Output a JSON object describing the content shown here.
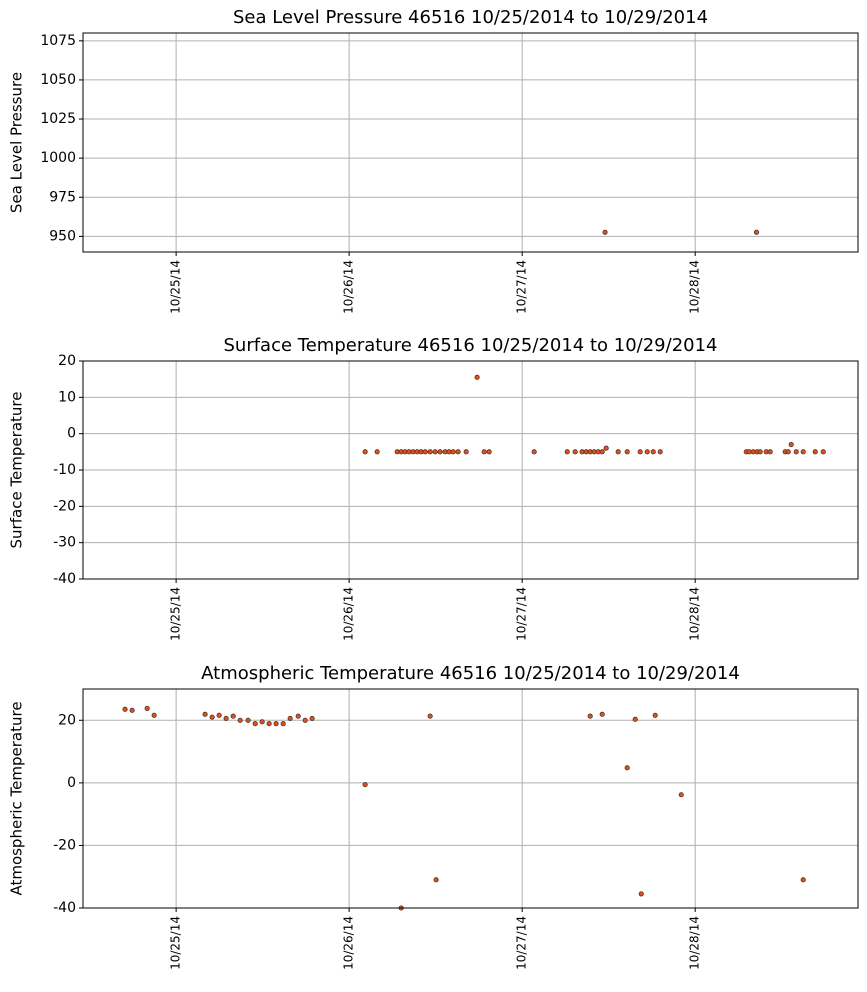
{
  "chart_data": [
    {
      "type": "scatter",
      "title": "Sea Level Pressure 46516  10/25/2014 to 10/29/2014",
      "y_label": "Sea Level Pressure",
      "x": [
        "2014-10-27T11:30",
        "2014-10-28T08:30"
      ],
      "values": [
        952.6,
        952.6
      ],
      "color": "#e0501c",
      "grid": true,
      "xlim": [
        "2014-10-24T11:05",
        "2014-10-28T22:35"
      ],
      "xticks": [
        {
          "value": "2014-10-25T00:00",
          "label": "10/25/14"
        },
        {
          "value": "2014-10-26T00:00",
          "label": "10/26/14"
        },
        {
          "value": "2014-10-27T00:00",
          "label": "10/27/14"
        },
        {
          "value": "2014-10-28T00:00",
          "label": "10/28/14"
        }
      ],
      "ylim": [
        940,
        1080
      ],
      "yticks": [
        950,
        975,
        1000,
        1025,
        1050,
        1075
      ]
    },
    {
      "type": "scatter",
      "title": "Surface Temperature 46516  10/25/2014 to 10/29/2014",
      "y_label": "Surface Temperature",
      "x": [
        "2014-10-26T02:13",
        "2014-10-26T03:53",
        "2014-10-26T06:40",
        "2014-10-26T07:13",
        "2014-10-26T07:46",
        "2014-10-26T08:19",
        "2014-10-26T08:53",
        "2014-10-26T09:26",
        "2014-10-26T09:59",
        "2014-10-26T10:33",
        "2014-10-26T11:14",
        "2014-10-26T11:56",
        "2014-10-26T12:37",
        "2014-10-26T13:19",
        "2014-10-26T13:52",
        "2014-10-26T14:26",
        "2014-10-26T15:07",
        "2014-10-26T16:14",
        "2014-10-26T17:45",
        "2014-10-26T18:44",
        "2014-10-26T19:25",
        "2014-10-27T01:40",
        "2014-10-27T06:15",
        "2014-10-27T07:21",
        "2014-10-27T08:19",
        "2014-10-27T08:53",
        "2014-10-27T09:26",
        "2014-10-27T09:59",
        "2014-10-27T10:33",
        "2014-10-27T11:06",
        "2014-10-27T11:39",
        "2014-10-27T13:19",
        "2014-10-27T14:34",
        "2014-10-27T16:22",
        "2014-10-27T17:21",
        "2014-10-27T18:11",
        "2014-10-27T19:09",
        "2014-10-28T07:05",
        "2014-10-28T07:29",
        "2014-10-28T08:03",
        "2014-10-28T08:36",
        "2014-10-28T09:01",
        "2014-10-28T09:51",
        "2014-10-28T10:24",
        "2014-10-28T12:29",
        "2014-10-28T12:54",
        "2014-10-28T13:19",
        "2014-10-28T14:01",
        "2014-10-28T14:59",
        "2014-10-28T16:39",
        "2014-10-28T17:46"
      ],
      "values": [
        -5,
        -5,
        -5,
        -5,
        -5,
        -5,
        -5,
        -5,
        -5,
        -5,
        -5,
        -5,
        -5,
        -5,
        -5,
        -5,
        -5,
        -5,
        15.5,
        -5,
        -5,
        -5,
        -5,
        -5,
        -5,
        -5,
        -5,
        -5,
        -5,
        -5,
        -4,
        -5,
        -5,
        -5,
        -5,
        -5,
        -5,
        -5,
        -5,
        -5,
        -5,
        -5,
        -5,
        -5,
        -5,
        -5,
        -3,
        -5,
        -5,
        -5,
        -5
      ],
      "color": "#e0501c",
      "grid": true,
      "xlim": [
        "2014-10-24T11:05",
        "2014-10-28T22:35"
      ],
      "xticks": [
        {
          "value": "2014-10-25T00:00",
          "label": "10/25/14"
        },
        {
          "value": "2014-10-26T00:00",
          "label": "10/26/14"
        },
        {
          "value": "2014-10-27T00:00",
          "label": "10/27/14"
        },
        {
          "value": "2014-10-28T00:00",
          "label": "10/28/14"
        }
      ],
      "ylim": [
        -40,
        20
      ],
      "yticks": [
        -40,
        -30,
        -20,
        -10,
        0,
        10,
        20
      ]
    },
    {
      "type": "scatter",
      "title": "Atmospheric Temperature 46516  10/25/2014 to 10/29/2014",
      "y_label": "Atmospheric Temperature",
      "x": [
        "2014-10-24T16:55",
        "2014-10-24T17:54",
        "2014-10-24T19:59",
        "2014-10-24T20:57",
        "2014-10-25T04:01",
        "2014-10-25T05:00",
        "2014-10-25T05:58",
        "2014-10-25T06:56",
        "2014-10-25T07:55",
        "2014-10-25T08:53",
        "2014-10-25T09:59",
        "2014-10-25T10:58",
        "2014-10-25T11:56",
        "2014-10-25T12:54",
        "2014-10-25T13:52",
        "2014-10-25T14:51",
        "2014-10-25T15:49",
        "2014-10-25T16:56",
        "2014-10-25T17:54",
        "2014-10-25T18:52",
        "2014-10-26T02:13",
        "2014-10-26T07:13",
        "2014-10-26T11:14",
        "2014-10-26T12:04",
        "2014-10-27T09:26",
        "2014-10-27T11:06",
        "2014-10-27T14:34",
        "2014-10-27T15:41",
        "2014-10-27T16:31",
        "2014-10-27T18:27",
        "2014-10-27T22:04",
        "2014-10-28T14:59"
      ],
      "values": [
        23.5,
        23.2,
        23.8,
        21.6,
        21.9,
        21,
        21.6,
        20.6,
        21.3,
        20,
        20,
        18.9,
        19.5,
        18.9,
        18.9,
        18.9,
        20.6,
        21.3,
        20,
        20.6,
        -0.6,
        -40,
        21.3,
        -31,
        21.3,
        21.9,
        4.8,
        20.3,
        -35.5,
        21.6,
        -3.8,
        -31
      ],
      "color": "#e0501c",
      "grid": true,
      "xlim": [
        "2014-10-24T11:05",
        "2014-10-28T22:35"
      ],
      "xticks": [
        {
          "value": "2014-10-25T00:00",
          "label": "10/25/14"
        },
        {
          "value": "2014-10-26T00:00",
          "label": "10/26/14"
        },
        {
          "value": "2014-10-27T00:00",
          "label": "10/27/14"
        },
        {
          "value": "2014-10-28T00:00",
          "label": "10/28/14"
        }
      ],
      "ylim": [
        -40,
        30
      ],
      "yticks": [
        -40,
        -20,
        0,
        20
      ]
    }
  ]
}
